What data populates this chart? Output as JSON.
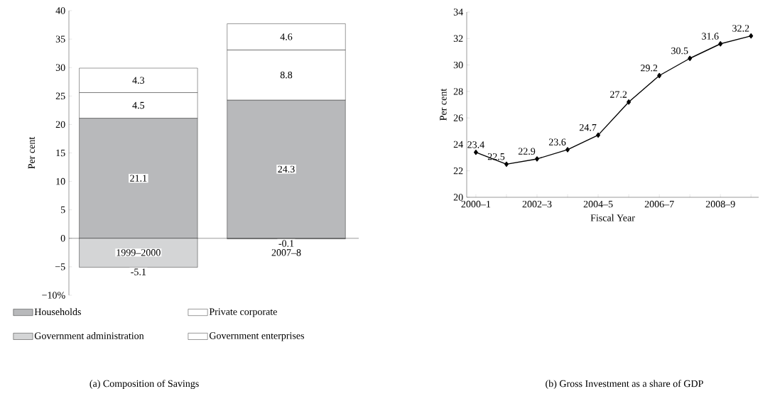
{
  "chart_data": [
    {
      "type": "bar",
      "title": "(a) Composition of Savings",
      "ylabel": "Per cent",
      "stacked": true,
      "categories": [
        "1999–2000",
        "2007–8"
      ],
      "series": [
        {
          "name": "Households",
          "color": "#b8b9bb",
          "values": [
            21.1,
            24.3
          ]
        },
        {
          "name": "Private corporate",
          "color": "#ffffff",
          "values": [
            4.5,
            8.8
          ]
        },
        {
          "name": "Government administration",
          "color": "#d4d5d6",
          "values": [
            -5.1,
            -0.1
          ]
        },
        {
          "name": "Government enterprises",
          "color": "#ffffff",
          "values": [
            4.3,
            4.6
          ]
        }
      ],
      "ylim": [
        -10,
        40
      ],
      "yticks": [
        {
          "value": -10,
          "label": "−10%"
        },
        {
          "value": -5,
          "label": "−5"
        },
        0,
        5,
        10,
        15,
        20,
        25,
        30,
        35,
        40
      ],
      "legend": "bottom",
      "data_labels": true
    },
    {
      "type": "line",
      "title": "(b) Gross Investment as a share of GDP",
      "xlabel": "Fiscal Year",
      "ylabel": "Per cent",
      "categories": [
        "2000–1",
        null,
        "2002–3",
        null,
        "2004–5",
        null,
        "2006–7",
        null,
        "2008–9",
        null
      ],
      "values": [
        23.4,
        22.5,
        22.9,
        23.6,
        24.7,
        27.2,
        29.2,
        30.5,
        31.6,
        32.2
      ],
      "color": "#000000",
      "ylim": [
        20,
        34
      ],
      "yticks": [
        20,
        22,
        24,
        26,
        28,
        30,
        32,
        34
      ],
      "marker": "diamond",
      "line_style": "solid",
      "data_labels": true
    }
  ]
}
